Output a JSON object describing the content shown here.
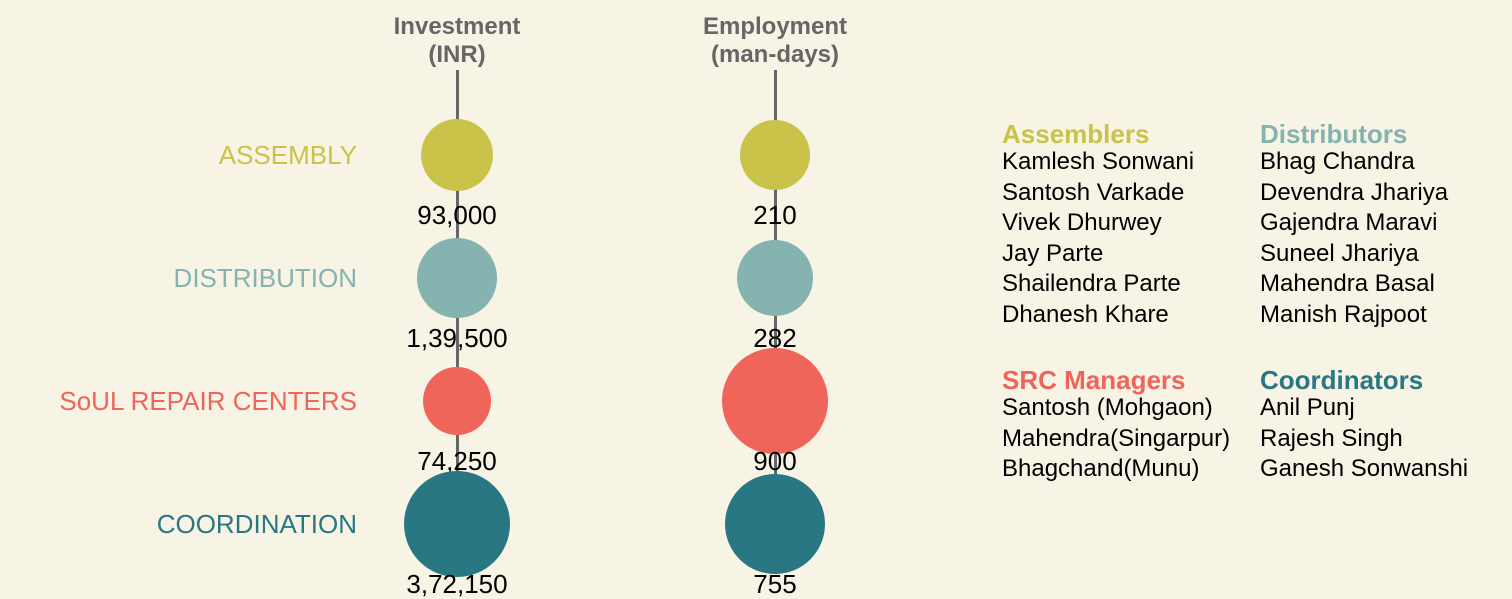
{
  "chart_data": {
    "type": "bubble",
    "categories": [
      "ASSEMBLY",
      "DISTRIBUTION",
      "SoUL REPAIR CENTERS",
      "COORDINATION"
    ],
    "colors": [
      "#c9c34a",
      "#85b3b0",
      "#f0655a",
      "#2a7784"
    ],
    "series": [
      {
        "name": "Investment (INR)",
        "values": [
          93000,
          139500,
          74250,
          372150
        ],
        "value_labels": [
          "93,000",
          "1,39,500",
          "74,250",
          "3,72,150"
        ]
      },
      {
        "name": "Employment (man-days)",
        "values": [
          210,
          282,
          900,
          755
        ]
      }
    ]
  },
  "teams": [
    {
      "name": "Assemblers",
      "color": "#c9c34a",
      "members": [
        "Kamlesh Sonwani",
        "Santosh Varkade",
        "Vivek Dhurwey",
        "Jay Parte",
        "Shailendra Parte",
        "Dhanesh Khare"
      ]
    },
    {
      "name": "Distributors",
      "color": "#85b3b0",
      "members": [
        "Bhag Chandra",
        "Devendra Jhariya",
        "Gajendra Maravi",
        "Suneel Jhariya",
        "Mahendra Basal",
        "Manish Rajpoot"
      ]
    },
    {
      "name": "SRC Managers",
      "color": "#f0655a",
      "members": [
        "Santosh (Mohgaon)",
        "Mahendra(Singarpur)",
        "Bhagchand(Munu)"
      ]
    },
    {
      "name": "Coordinators",
      "color": "#2a7784",
      "members": [
        "Anil Punj",
        "Rajesh Singh",
        "Ganesh Sonwanshi"
      ]
    }
  ]
}
